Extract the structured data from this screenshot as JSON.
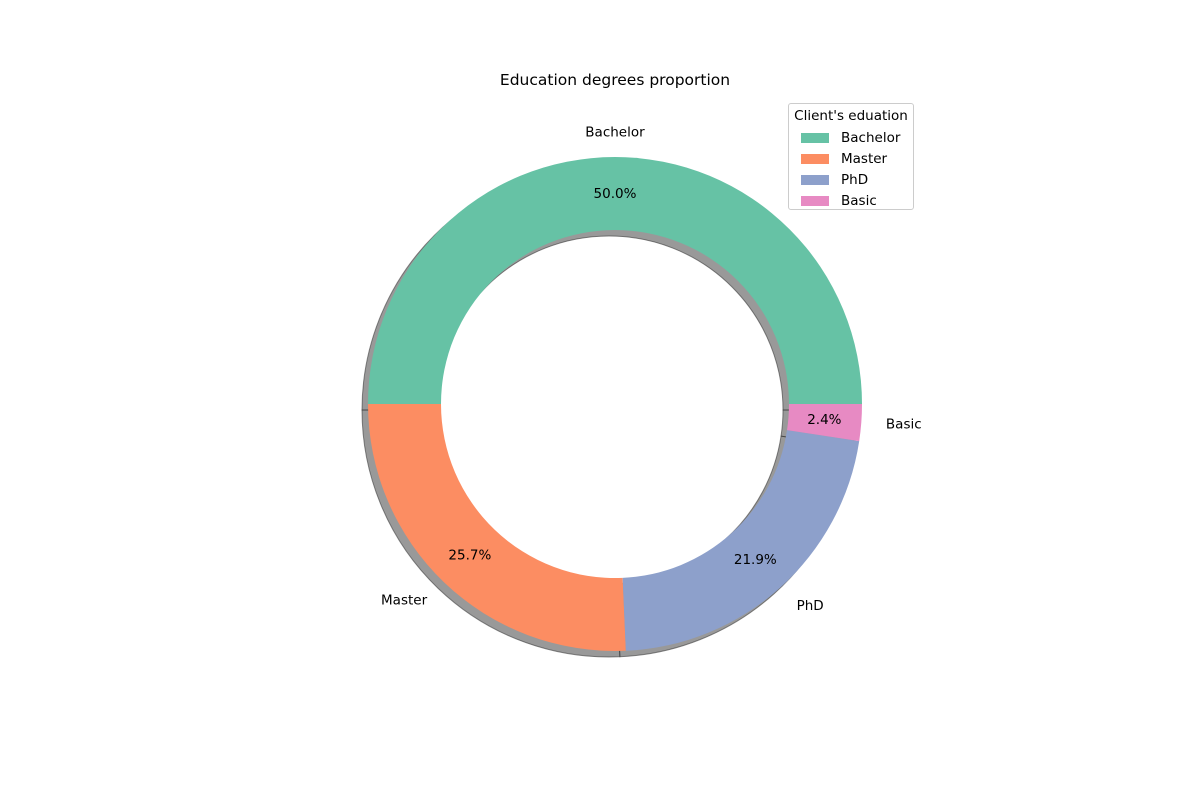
{
  "chart_data": {
    "type": "pie",
    "title": "Education degrees proportion",
    "slices": [
      {
        "label": "Bachelor",
        "value": 50.0,
        "pct_label": "50.0%",
        "color": "#66c2a5"
      },
      {
        "label": "Master",
        "value": 25.7,
        "pct_label": "25.7%",
        "color": "#fc8d62"
      },
      {
        "label": "PhD",
        "value": 21.9,
        "pct_label": "21.9%",
        "color": "#8da0cb"
      },
      {
        "label": "Basic",
        "value": 2.4,
        "pct_label": "2.4%",
        "color": "#e78ac3"
      }
    ],
    "start_angle_deg": 0,
    "direction": "counterclockwise",
    "donut": true,
    "shadow": true,
    "legend": {
      "title": "Client's eduation",
      "placement": "top-right"
    }
  }
}
